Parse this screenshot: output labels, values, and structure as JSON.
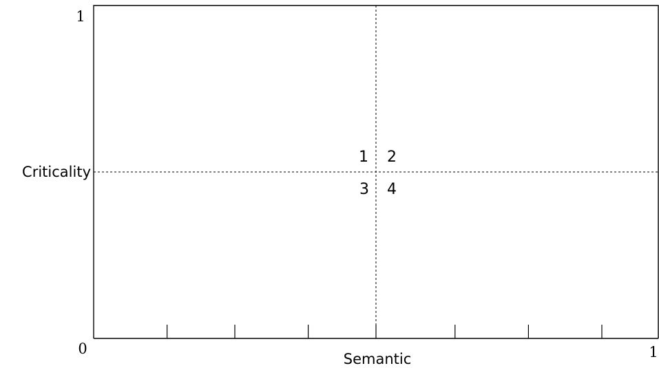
{
  "chart_data": {
    "type": "quadrant",
    "xlabel": "Semantic",
    "ylabel": "Criticality",
    "xlim": [
      0,
      1
    ],
    "ylim": [
      0,
      1
    ],
    "x_origin_label": "0",
    "x_max_label": "1",
    "y_max_label": "1",
    "x_divider": 0.5,
    "y_divider": 0.5,
    "x_ticks": [
      0.13,
      0.25,
      0.38,
      0.5,
      0.64,
      0.77,
      0.9
    ],
    "quadrants": [
      {
        "id": "q1",
        "label": "1"
      },
      {
        "id": "q2",
        "label": "2"
      },
      {
        "id": "q3",
        "label": "3"
      },
      {
        "id": "q4",
        "label": "4"
      }
    ]
  }
}
